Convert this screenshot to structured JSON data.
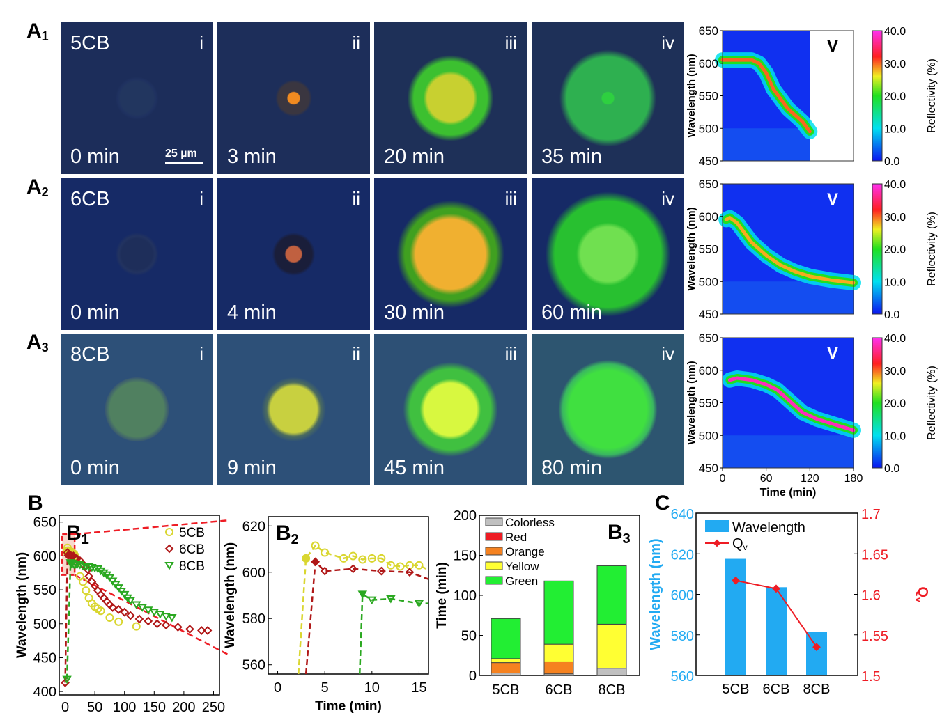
{
  "panels_A": [
    {
      "letter": "A",
      "sub": "1",
      "material": "5CB",
      "images": [
        {
          "roman": "i",
          "time": "0 min",
          "scale_bar": "25 µm",
          "bg": "#1c2d5a",
          "core": "#22365f",
          "halo": "#1f3160",
          "core_r": 0.17,
          "halo_r": 0.2
        },
        {
          "roman": "ii",
          "time": "3 min",
          "bg": "#1d2e5a",
          "core": "#f08a20",
          "halo": "#3a3640",
          "core_r": 0.06,
          "halo_r": 0.17
        },
        {
          "roman": "iii",
          "time": "20 min",
          "bg": "#1e3058",
          "core": "#c8d030",
          "halo": "#3cc030",
          "core_r": 0.24,
          "halo_r": 0.4
        },
        {
          "roman": "iv",
          "time": "35 min",
          "bg": "#1e3058",
          "core": "#2ed040",
          "halo": "#2eb050",
          "core_r": 0.06,
          "halo_r": 0.45
        }
      ]
    },
    {
      "letter": "A",
      "sub": "2",
      "material": "6CB",
      "images": [
        {
          "roman": "i",
          "time": "0 min",
          "bg": "#162a66",
          "core": "#1e2e5a",
          "halo": "#223360",
          "core_r": 0.16,
          "halo_r": 0.2
        },
        {
          "roman": "ii",
          "time": "4 min",
          "bg": "#162a66",
          "core": "#c06040",
          "halo": "#1a1e3a",
          "core_r": 0.08,
          "halo_r": 0.2
        },
        {
          "roman": "iii",
          "time": "30 min",
          "bg": "#162a66",
          "core": "#f0b030",
          "halo": "#40a020",
          "core_r": 0.36,
          "halo_r": 0.5
        },
        {
          "roman": "iv",
          "time": "60 min",
          "bg": "#162a66",
          "core": "#70e050",
          "halo": "#28c030",
          "core_r": 0.28,
          "halo_r": 0.58
        }
      ]
    },
    {
      "letter": "A",
      "sub": "3",
      "material": "8CB",
      "images": [
        {
          "roman": "i",
          "time": "0 min",
          "bg": "#2d5078",
          "core": "#508060",
          "halo": "#3a5a70",
          "core_r": 0.28,
          "halo_r": 0.3
        },
        {
          "roman": "ii",
          "time": "9 min",
          "bg": "#2d5078",
          "core": "#c8d040",
          "halo": "#4a6a60",
          "core_r": 0.24,
          "halo_r": 0.3
        },
        {
          "roman": "iii",
          "time": "45 min",
          "bg": "#2d5075",
          "core": "#d8f840",
          "halo": "#40c040",
          "core_r": 0.27,
          "halo_r": 0.44
        },
        {
          "roman": "iv",
          "time": "80 min",
          "bg": "#2d5570",
          "core": "#40e040",
          "halo": "#3ab860",
          "core_r": 0.4,
          "halo_r": 0.46
        }
      ]
    }
  ],
  "heatmaps_v": [
    {
      "label": "V",
      "ylabel": "Wavelength (nm)",
      "yticks": [
        "650",
        "600",
        "550",
        "500",
        "450"
      ],
      "xticks": [],
      "ylim": [
        450,
        650
      ],
      "xlim": [
        0,
        180
      ],
      "data_end_time": 120,
      "ridge": [
        [
          0,
          605
        ],
        [
          40,
          605
        ],
        [
          50,
          600
        ],
        [
          60,
          585
        ],
        [
          70,
          560
        ],
        [
          80,
          545
        ],
        [
          90,
          530
        ],
        [
          100,
          520
        ],
        [
          110,
          510
        ],
        [
          120,
          495
        ]
      ],
      "peak_reflectivity": 30
    },
    {
      "label": "V",
      "ylabel": "Wavelength (nm)",
      "yticks": [
        "650",
        "600",
        "550",
        "500",
        "450"
      ],
      "xticks": [],
      "ylim": [
        450,
        650
      ],
      "xlim": [
        0,
        180
      ],
      "data_end_time": 180,
      "ridge": [
        [
          5,
          595
        ],
        [
          10,
          598
        ],
        [
          20,
          590
        ],
        [
          30,
          575
        ],
        [
          40,
          560
        ],
        [
          60,
          540
        ],
        [
          80,
          525
        ],
        [
          100,
          515
        ],
        [
          120,
          508
        ],
        [
          150,
          502
        ],
        [
          180,
          498
        ]
      ],
      "peak_reflectivity": 28
    },
    {
      "label": "V",
      "ylabel": "Wavelength (nm)",
      "yticks": [
        "650",
        "600",
        "550",
        "500",
        "450"
      ],
      "xticks": [
        "0",
        "60",
        "120",
        "180"
      ],
      "xlabel": "Time (min)",
      "ylim": [
        450,
        650
      ],
      "xlim": [
        0,
        180
      ],
      "data_end_time": 180,
      "ridge": [
        [
          10,
          585
        ],
        [
          20,
          588
        ],
        [
          40,
          585
        ],
        [
          60,
          578
        ],
        [
          75,
          570
        ],
        [
          90,
          555
        ],
        [
          110,
          535
        ],
        [
          130,
          525
        ],
        [
          150,
          518
        ],
        [
          180,
          508
        ]
      ],
      "peak_reflectivity": 38
    }
  ],
  "colorbar": {
    "label": "Reflectivity (%)",
    "ticks": [
      "40.0",
      "30.0",
      "20.0",
      "10.0",
      "0.0"
    ],
    "range": [
      0,
      40
    ]
  },
  "panel_B_letter": "B",
  "panel_C_letter": "C",
  "chart_data": [
    {
      "id": "B1",
      "type": "scatter",
      "title": "B",
      "panel_label": "B",
      "panel_sub": "1",
      "xlabel": "Time (min)",
      "ylabel": "Wavelength (nm)",
      "xlim": [
        -10,
        260
      ],
      "ylim": [
        395,
        660
      ],
      "xticks": [
        0,
        50,
        100,
        150,
        200,
        250
      ],
      "yticks": [
        400,
        450,
        500,
        550,
        600,
        650
      ],
      "legend_position": "top-right",
      "series": [
        {
          "name": "5CB",
          "color": "#d9d630",
          "marker": "circle",
          "points": [
            [
              3,
              606
            ],
            [
              4,
              612
            ],
            [
              5,
              608
            ],
            [
              7,
              606
            ],
            [
              8,
              607
            ],
            [
              9,
              605
            ],
            [
              10,
              606
            ],
            [
              11,
              606
            ],
            [
              12,
              603
            ],
            [
              13,
              602
            ],
            [
              14,
              603
            ],
            [
              15,
              603
            ],
            [
              17,
              600
            ],
            [
              20,
              590
            ],
            [
              25,
              570
            ],
            [
              30,
              562
            ],
            [
              35,
              549
            ],
            [
              40,
              538
            ],
            [
              45,
              530
            ],
            [
              50,
              525
            ],
            [
              55,
              522
            ],
            [
              60,
              519
            ],
            [
              75,
              509
            ],
            [
              90,
              503
            ],
            [
              120,
              496
            ]
          ]
        },
        {
          "name": "6CB",
          "color": "#b01818",
          "marker": "diamond",
          "points": [
            [
              0,
              413
            ],
            [
              4,
              605
            ],
            [
              5,
              601
            ],
            [
              8,
              601
            ],
            [
              11,
              600
            ],
            [
              14,
              600
            ],
            [
              17,
              597
            ],
            [
              20,
              596
            ],
            [
              25,
              593
            ],
            [
              30,
              588
            ],
            [
              38,
              580
            ],
            [
              40,
              570
            ],
            [
              45,
              562
            ],
            [
              50,
              556
            ],
            [
              55,
              549
            ],
            [
              60,
              543
            ],
            [
              65,
              538
            ],
            [
              70,
              533
            ],
            [
              75,
              528
            ],
            [
              80,
              524
            ],
            [
              90,
              521
            ],
            [
              100,
              517
            ],
            [
              110,
              512
            ],
            [
              125,
              507
            ],
            [
              140,
              504
            ],
            [
              155,
              500
            ],
            [
              170,
              498
            ],
            [
              190,
              495
            ],
            [
              210,
              492
            ],
            [
              230,
              490
            ],
            [
              240,
              490
            ]
          ]
        },
        {
          "name": "8CB",
          "color": "#2aa820",
          "marker": "triangle-down",
          "points": [
            [
              3,
              418
            ],
            [
              9,
              590
            ],
            [
              10,
              588
            ],
            [
              12,
              589
            ],
            [
              15,
              587
            ],
            [
              18,
              588
            ],
            [
              20,
              587
            ],
            [
              25,
              587
            ],
            [
              30,
              585
            ],
            [
              35,
              584
            ],
            [
              40,
              584
            ],
            [
              45,
              583
            ],
            [
              50,
              582
            ],
            [
              55,
              581
            ],
            [
              60,
              578
            ],
            [
              65,
              575
            ],
            [
              70,
              572
            ],
            [
              75,
              568
            ],
            [
              80,
              563
            ],
            [
              85,
              558
            ],
            [
              90,
              553
            ],
            [
              95,
              548
            ],
            [
              100,
              543
            ],
            [
              105,
              538
            ],
            [
              110,
              534
            ],
            [
              120,
              528
            ],
            [
              130,
              524
            ],
            [
              140,
              520
            ],
            [
              150,
              517
            ],
            [
              160,
              514
            ],
            [
              170,
              511
            ],
            [
              180,
              509
            ]
          ]
        }
      ],
      "zoom_box": {
        "x": [
          -5,
          16
        ],
        "y": [
          572,
          632
        ]
      }
    },
    {
      "id": "B2",
      "type": "line",
      "panel_label": "B",
      "panel_sub": "2",
      "xlabel": "Time (min)",
      "ylabel": "Wavelength (nm)",
      "xlim": [
        -1,
        16
      ],
      "ylim": [
        556,
        624
      ],
      "xticks": [
        0,
        5,
        10,
        15
      ],
      "yticks": [
        560,
        580,
        600,
        620
      ],
      "series": [
        {
          "name": "5CB",
          "color": "#d9d630",
          "marker": "circle",
          "first_filled": true,
          "points": [
            [
              2.2,
              556
            ],
            [
              3,
              606
            ],
            [
              4,
              611.5
            ],
            [
              5,
              608.5
            ],
            [
              7,
              606
            ],
            [
              8,
              607
            ],
            [
              9,
              605.5
            ],
            [
              10,
              606
            ],
            [
              11,
              606
            ],
            [
              12,
              603
            ],
            [
              13,
              602.5
            ],
            [
              14,
              603
            ],
            [
              15,
              603
            ],
            [
              16,
              601
            ]
          ]
        },
        {
          "name": "6CB",
          "color": "#b01818",
          "marker": "diamond",
          "first_filled": true,
          "points": [
            [
              3,
              556
            ],
            [
              4,
              604.5
            ],
            [
              5,
              600.5
            ],
            [
              8,
              601.5
            ],
            [
              11,
              600.5
            ],
            [
              14,
              600
            ],
            [
              16,
              597
            ]
          ]
        },
        {
          "name": "8CB",
          "color": "#2aa820",
          "marker": "triangle-down",
          "first_filled": true,
          "points": [
            [
              8.7,
              556
            ],
            [
              9,
              590.5
            ],
            [
              10,
              588
            ],
            [
              12,
              588.5
            ],
            [
              15,
              586.5
            ],
            [
              16,
              586.5
            ]
          ]
        }
      ]
    },
    {
      "id": "B3",
      "type": "bar",
      "stacked": true,
      "panel_label": "B",
      "panel_sub": "3",
      "ylabel": "Time (min)",
      "ylim": [
        0,
        200
      ],
      "yticks": [
        0,
        50,
        100,
        150,
        200
      ],
      "categories": [
        "5CB",
        "6CB",
        "8CB"
      ],
      "legend_position": "top-left",
      "series": [
        {
          "name": "Colorless",
          "color": "#c0c0c0",
          "values": [
            3,
            2,
            9
          ]
        },
        {
          "name": "Red",
          "color": "#ee1c24",
          "values": [
            0,
            0,
            0
          ]
        },
        {
          "name": "Orange",
          "color": "#f58220",
          "values": [
            13,
            15,
            0
          ]
        },
        {
          "name": "Yellow",
          "color": "#ffff33",
          "values": [
            5,
            22,
            55
          ]
        },
        {
          "name": "Green",
          "color": "#22ee33",
          "values": [
            50,
            79,
            73
          ]
        }
      ]
    },
    {
      "id": "C",
      "type": "bar",
      "panel_label": "C",
      "categories": [
        "5CB",
        "6CB",
        "8CB"
      ],
      "ylabel": "Wavelength (nm)",
      "ylabel_color": "#22aaf2",
      "ylim": [
        560,
        640
      ],
      "yticks": [
        560,
        580,
        600,
        620,
        640
      ],
      "y2label": "Qv",
      "y2label_color": "#ee1c24",
      "y2lim": [
        1.5,
        1.7
      ],
      "y2ticks": [
        "1.5",
        "1.55",
        "1.6",
        "1.65",
        "1.7"
      ],
      "legend_position": "top-left",
      "series": [
        {
          "name": "Wavelength",
          "type": "bar",
          "axis": "left",
          "color": "#22aaf2",
          "values": [
            617.5,
            603.5,
            581.5
          ]
        },
        {
          "name": "Qv",
          "type": "line",
          "axis": "right",
          "color": "#ee1c24",
          "marker": "diamond",
          "values": [
            1.617,
            1.607,
            1.535
          ]
        }
      ]
    }
  ]
}
